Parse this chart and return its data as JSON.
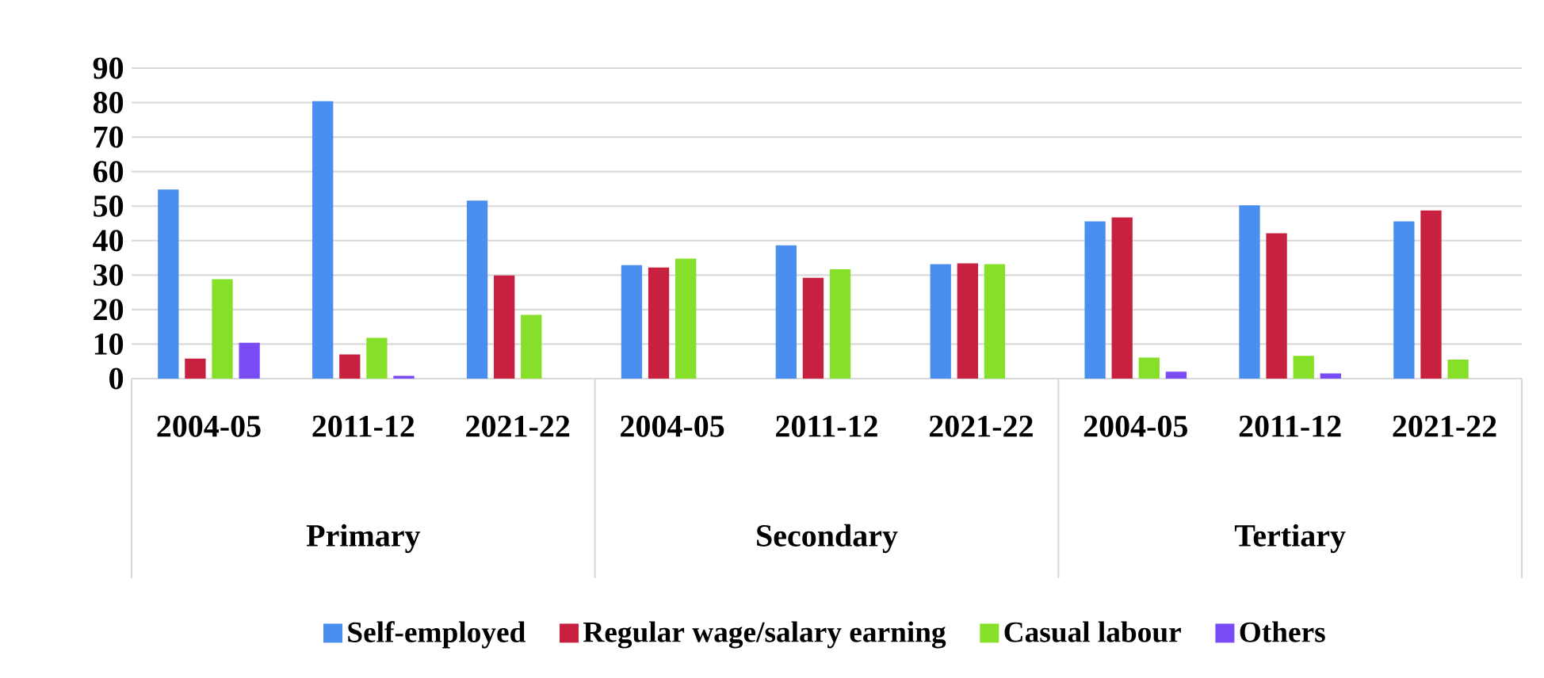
{
  "chart_data": {
    "type": "bar",
    "categories": [
      "2004-05",
      "2011-12",
      "2021-22",
      "2004-05",
      "2011-12",
      "2021-22",
      "2004-05",
      "2011-12",
      "2021-22"
    ],
    "series": [
      {
        "name": "Self-employed",
        "color": "#4a8fef",
        "values": [
          54.8,
          80.4,
          51.6,
          32.9,
          38.6,
          33.2,
          45.6,
          50.2,
          45.6
        ]
      },
      {
        "name": "Regular wage/salary earning",
        "color": "#c8203f",
        "values": [
          5.8,
          7.0,
          29.9,
          32.2,
          29.2,
          33.4,
          46.7,
          42.1,
          48.7
        ]
      },
      {
        "name": "Casual labour",
        "color": "#86e02a",
        "values": [
          28.8,
          11.8,
          18.5,
          34.8,
          31.7,
          33.2,
          6.1,
          6.6,
          5.5
        ]
      },
      {
        "name": "Others",
        "color": "#7a4cf5",
        "values": [
          10.4,
          0.8,
          null,
          null,
          null,
          null,
          2.0,
          1.5,
          null
        ]
      }
    ],
    "annotations": [
      "Primary",
      "Secondary",
      "Tertiary"
    ],
    "ylim": [
      0,
      90
    ],
    "yticks": [
      0,
      10,
      20,
      30,
      40,
      50,
      60,
      70,
      80,
      90
    ],
    "grid": "y",
    "legend": "bottom"
  }
}
